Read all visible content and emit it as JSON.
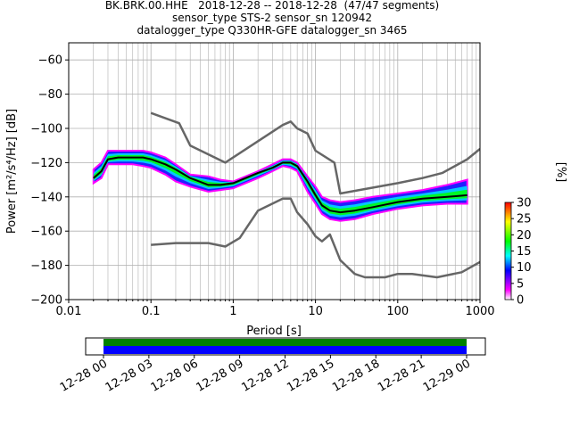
{
  "title_lines": [
    "BK.BRK.00.HHE   2018-12-28 -- 2018-12-28  (47/47 segments)",
    "sensor_type STS-2 sensor_sn 120942",
    "datalogger_type Q330HR-GFE datalogger_sn 3465"
  ],
  "chart_data": [
    {
      "type": "heatmap",
      "xlabel": "Period [s]",
      "ylabel": "Power [m²/s⁴/Hz] [dB]",
      "xscale": "log",
      "xlim": [
        0.01,
        1000
      ],
      "ylim": [
        -200,
        -50
      ],
      "x_ticks": [
        0.01,
        0.1,
        1,
        10,
        100,
        1000
      ],
      "x_tick_labels": [
        "0.01",
        "0.1",
        "1",
        "10",
        "100",
        "1000"
      ],
      "y_ticks": [
        -200,
        -180,
        -160,
        -140,
        -120,
        -100,
        -80,
        -60
      ],
      "y_tick_labels": [
        "−200",
        "−180",
        "−160",
        "−140",
        "−120",
        "−100",
        "−80",
        "−60"
      ],
      "grid": true,
      "colorbar": {
        "label": "[%]",
        "range": [
          0,
          30
        ],
        "ticks": [
          0,
          5,
          10,
          15,
          20,
          25,
          30
        ],
        "colors": [
          "#ffffff",
          "#ff00ff",
          "#0000ff",
          "#00ffff",
          "#00ff00",
          "#ffff00",
          "#ff0000"
        ]
      },
      "psd_extent": {
        "periods": [
          0.02,
          0.025,
          0.03,
          0.04,
          0.06,
          0.08,
          0.1,
          0.15,
          0.2,
          0.3,
          0.5,
          0.7,
          1,
          2,
          3,
          4,
          5,
          6,
          8,
          10,
          12,
          15,
          20,
          30,
          50,
          100,
          200,
          400,
          700
        ],
        "upper": [
          -124,
          -120,
          -113,
          -113,
          -113,
          -113,
          -114,
          -117,
          -121,
          -127,
          -128,
          -130,
          -131,
          -125,
          -121,
          -118,
          -118,
          -120,
          -128,
          -134,
          -140,
          -142,
          -143,
          -142,
          -140,
          -138,
          -136,
          -133,
          -130
        ],
        "lower": [
          -132,
          -129,
          -121,
          -121,
          -121,
          -122,
          -123,
          -127,
          -131,
          -134,
          -137,
          -136,
          -135,
          -129,
          -125,
          -122,
          -123,
          -125,
          -137,
          -144,
          -150,
          -153,
          -154,
          -153,
          -150,
          -147,
          -145,
          -144,
          -144
        ]
      },
      "series": [
        {
          "x": [
            0.02,
            0.025,
            0.03,
            0.04,
            0.06,
            0.08,
            0.1,
            0.15,
            0.2,
            0.3,
            0.5,
            0.7,
            1,
            2,
            3,
            4,
            5,
            6,
            8,
            10,
            12,
            15,
            20,
            30,
            50,
            100,
            200,
            400,
            700
          ],
          "y": [
            -129,
            -125,
            -118,
            -117,
            -117,
            -117,
            -118,
            -121,
            -124,
            -129,
            -133,
            -133,
            -132,
            -126,
            -123,
            -120,
            -120,
            -122,
            -131,
            -139,
            -145,
            -148,
            -149,
            -148,
            -146,
            -143,
            -141,
            -140,
            -139
          ]
        },
        {
          "x": [
            0.1,
            0.22,
            0.3,
            0.8,
            4,
            5,
            6,
            8,
            10,
            17,
            20,
            100,
            200,
            350,
            700,
            1000
          ],
          "y": [
            -91,
            -97,
            -110,
            -120,
            -98,
            -96,
            -100,
            -103,
            -113,
            -120,
            -138,
            -132,
            -129,
            -126,
            -118,
            -112
          ]
        },
        {
          "x": [
            0.1,
            0.2,
            0.5,
            0.8,
            1.2,
            2,
            4,
            5,
            6,
            8,
            10,
            12,
            15,
            20,
            30,
            40,
            70,
            100,
            150,
            300,
            600,
            1000
          ],
          "y": [
            -168,
            -167,
            -167,
            -169,
            -164,
            -148,
            -141,
            -141,
            -149,
            -156,
            -163,
            -166,
            -162,
            -177,
            -185,
            -187,
            -187,
            -185,
            -185,
            -187,
            -184,
            -178
          ]
        }
      ]
    },
    {
      "type": "bar",
      "x_tick_labels": [
        "12-28 00",
        "12-28 03",
        "12-28 06",
        "12-28 09",
        "12-28 12",
        "12-28 15",
        "12-28 18",
        "12-28 21",
        "12-29 00"
      ],
      "data_coverage_hours": [
        0,
        24
      ],
      "colors": {
        "available": "#008000",
        "used": "#0000ff"
      }
    }
  ]
}
